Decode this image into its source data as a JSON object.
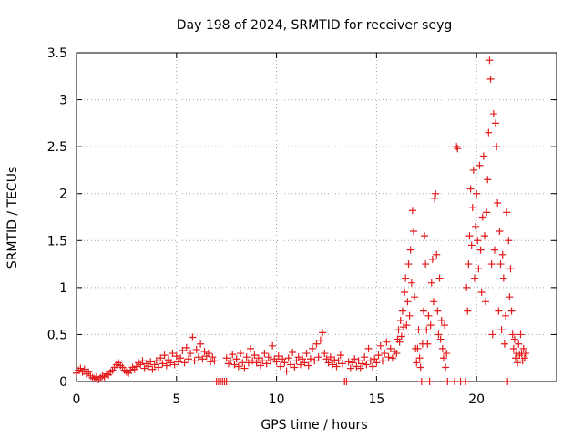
{
  "chart_data": {
    "type": "scatter",
    "title": "Day 198 of 2024, SRMTID for receiver seyg",
    "xlabel": "GPS time / hours",
    "ylabel": "SRMTID / TECUs",
    "xlim": [
      0,
      24
    ],
    "ylim": [
      0,
      3.5
    ],
    "x_ticks": [
      0,
      5,
      10,
      15,
      20
    ],
    "x_tick_labels": [
      "0",
      "5",
      "10",
      "15",
      "20"
    ],
    "y_ticks": [
      0,
      0.5,
      1,
      1.5,
      2,
      2.5,
      3,
      3.5
    ],
    "y_tick_labels": [
      "0",
      "0.5",
      "1",
      "1.5",
      "2",
      "2.5",
      "3",
      "3.5"
    ],
    "grid": true,
    "marker": "+",
    "series": [
      {
        "name": "SRMTID",
        "color": "#e41a1c",
        "points": [
          [
            0.0,
            0.09
          ],
          [
            0.1,
            0.12
          ],
          [
            0.2,
            0.14
          ],
          [
            0.3,
            0.1
          ],
          [
            0.4,
            0.13
          ],
          [
            0.5,
            0.08
          ],
          [
            0.6,
            0.1
          ],
          [
            0.7,
            0.06
          ],
          [
            0.8,
            0.04
          ],
          [
            0.9,
            0.03
          ],
          [
            1.0,
            0.05
          ],
          [
            1.1,
            0.02
          ],
          [
            1.2,
            0.04
          ],
          [
            1.3,
            0.06
          ],
          [
            1.4,
            0.05
          ],
          [
            1.5,
            0.08
          ],
          [
            1.6,
            0.07
          ],
          [
            1.7,
            0.1
          ],
          [
            1.8,
            0.12
          ],
          [
            1.9,
            0.15
          ],
          [
            2.0,
            0.18
          ],
          [
            2.1,
            0.2
          ],
          [
            2.2,
            0.17
          ],
          [
            2.3,
            0.15
          ],
          [
            2.4,
            0.12
          ],
          [
            2.5,
            0.1
          ],
          [
            2.6,
            0.09
          ],
          [
            2.7,
            0.12
          ],
          [
            2.8,
            0.15
          ],
          [
            2.9,
            0.13
          ],
          [
            3.0,
            0.16
          ],
          [
            3.1,
            0.2
          ],
          [
            3.2,
            0.18
          ],
          [
            3.3,
            0.22
          ],
          [
            3.4,
            0.14
          ],
          [
            3.5,
            0.19
          ],
          [
            3.6,
            0.16
          ],
          [
            3.7,
            0.21
          ],
          [
            3.8,
            0.13
          ],
          [
            3.9,
            0.18
          ],
          [
            4.0,
            0.22
          ],
          [
            4.1,
            0.15
          ],
          [
            4.2,
            0.25
          ],
          [
            4.3,
            0.19
          ],
          [
            4.4,
            0.28
          ],
          [
            4.5,
            0.17
          ],
          [
            4.6,
            0.23
          ],
          [
            4.7,
            0.2
          ],
          [
            4.8,
            0.3
          ],
          [
            4.9,
            0.18
          ],
          [
            5.0,
            0.27
          ],
          [
            5.1,
            0.21
          ],
          [
            5.2,
            0.25
          ],
          [
            5.3,
            0.33
          ],
          [
            5.4,
            0.2
          ],
          [
            5.5,
            0.36
          ],
          [
            5.6,
            0.24
          ],
          [
            5.7,
            0.3
          ],
          [
            5.8,
            0.47
          ],
          [
            5.9,
            0.22
          ],
          [
            6.0,
            0.34
          ],
          [
            6.1,
            0.26
          ],
          [
            6.2,
            0.4
          ],
          [
            6.3,
            0.24
          ],
          [
            6.4,
            0.32
          ],
          [
            6.5,
            0.27
          ],
          [
            6.6,
            0.3
          ],
          [
            6.7,
            0.21
          ],
          [
            6.8,
            0.26
          ],
          [
            6.9,
            0.22
          ],
          [
            7.0,
            0.0
          ],
          [
            7.1,
            0.0
          ],
          [
            7.2,
            0.0
          ],
          [
            7.3,
            0.0
          ],
          [
            7.4,
            0.0
          ],
          [
            7.5,
            0.0
          ],
          [
            7.5,
            0.25
          ],
          [
            7.6,
            0.19
          ],
          [
            7.7,
            0.22
          ],
          [
            7.8,
            0.29
          ],
          [
            7.9,
            0.18
          ],
          [
            8.0,
            0.24
          ],
          [
            8.1,
            0.16
          ],
          [
            8.2,
            0.3
          ],
          [
            8.3,
            0.2
          ],
          [
            8.4,
            0.14
          ],
          [
            8.5,
            0.26
          ],
          [
            8.6,
            0.2
          ],
          [
            8.7,
            0.35
          ],
          [
            8.8,
            0.22
          ],
          [
            8.9,
            0.28
          ],
          [
            9.0,
            0.2
          ],
          [
            9.1,
            0.25
          ],
          [
            9.2,
            0.17
          ],
          [
            9.3,
            0.22
          ],
          [
            9.4,
            0.3
          ],
          [
            9.5,
            0.19
          ],
          [
            9.6,
            0.26
          ],
          [
            9.7,
            0.22
          ],
          [
            9.8,
            0.38
          ],
          [
            9.9,
            0.24
          ],
          [
            10.0,
            0.21
          ],
          [
            10.1,
            0.27
          ],
          [
            10.2,
            0.16
          ],
          [
            10.3,
            0.24
          ],
          [
            10.4,
            0.2
          ],
          [
            10.5,
            0.11
          ],
          [
            10.6,
            0.25
          ],
          [
            10.7,
            0.18
          ],
          [
            10.8,
            0.31
          ],
          [
            10.9,
            0.15
          ],
          [
            11.0,
            0.22
          ],
          [
            11.1,
            0.26
          ],
          [
            11.2,
            0.18
          ],
          [
            11.3,
            0.24
          ],
          [
            11.4,
            0.2
          ],
          [
            11.5,
            0.3
          ],
          [
            11.6,
            0.17
          ],
          [
            11.7,
            0.24
          ],
          [
            11.8,
            0.35
          ],
          [
            11.9,
            0.22
          ],
          [
            12.0,
            0.4
          ],
          [
            12.1,
            0.26
          ],
          [
            12.2,
            0.44
          ],
          [
            12.3,
            0.52
          ],
          [
            12.4,
            0.3
          ],
          [
            12.5,
            0.24
          ],
          [
            12.6,
            0.2
          ],
          [
            12.7,
            0.26
          ],
          [
            12.8,
            0.18
          ],
          [
            12.9,
            0.23
          ],
          [
            13.0,
            0.16
          ],
          [
            13.1,
            0.22
          ],
          [
            13.2,
            0.28
          ],
          [
            13.3,
            0.19
          ],
          [
            13.4,
            0.0
          ],
          [
            13.5,
            0.0
          ],
          [
            13.6,
            0.21
          ],
          [
            13.7,
            0.14
          ],
          [
            13.8,
            0.2
          ],
          [
            13.9,
            0.24
          ],
          [
            14.0,
            0.16
          ],
          [
            14.1,
            0.22
          ],
          [
            14.2,
            0.14
          ],
          [
            14.3,
            0.19
          ],
          [
            14.4,
            0.26
          ],
          [
            14.5,
            0.18
          ],
          [
            14.6,
            0.35
          ],
          [
            14.7,
            0.22
          ],
          [
            14.8,
            0.16
          ],
          [
            14.9,
            0.24
          ],
          [
            15.0,
            0.2
          ],
          [
            15.1,
            0.28
          ],
          [
            15.2,
            0.38
          ],
          [
            15.3,
            0.22
          ],
          [
            15.4,
            0.3
          ],
          [
            15.5,
            0.42
          ],
          [
            15.6,
            0.26
          ],
          [
            15.7,
            0.35
          ],
          [
            15.8,
            0.25
          ],
          [
            15.9,
            0.32
          ],
          [
            16.0,
            0.3
          ],
          [
            16.05,
            0.45
          ],
          [
            16.1,
            0.55
          ],
          [
            16.15,
            0.42
          ],
          [
            16.2,
            0.65
          ],
          [
            16.25,
            0.48
          ],
          [
            16.3,
            0.75
          ],
          [
            16.35,
            0.58
          ],
          [
            16.4,
            0.95
          ],
          [
            16.45,
            1.1
          ],
          [
            16.5,
            0.6
          ],
          [
            16.55,
            0.85
          ],
          [
            16.6,
            1.25
          ],
          [
            16.65,
            0.7
          ],
          [
            16.7,
            1.4
          ],
          [
            16.75,
            1.05
          ],
          [
            16.8,
            1.82
          ],
          [
            16.85,
            1.6
          ],
          [
            16.9,
            0.9
          ],
          [
            16.95,
            0.35
          ],
          [
            17.0,
            0.2
          ],
          [
            17.05,
            0.35
          ],
          [
            17.1,
            0.55
          ],
          [
            17.15,
            0.25
          ],
          [
            17.2,
            0.15
          ],
          [
            17.25,
            0.0
          ],
          [
            17.3,
            0.4
          ],
          [
            17.35,
            0.75
          ],
          [
            17.4,
            1.55
          ],
          [
            17.45,
            1.25
          ],
          [
            17.5,
            0.55
          ],
          [
            17.55,
            0.4
          ],
          [
            17.6,
            0.7
          ],
          [
            17.65,
            0.0
          ],
          [
            17.7,
            0.6
          ],
          [
            17.75,
            1.05
          ],
          [
            17.8,
            1.3
          ],
          [
            17.85,
            0.85
          ],
          [
            17.9,
            1.95
          ],
          [
            17.95,
            2.0
          ],
          [
            18.0,
            1.35
          ],
          [
            18.05,
            0.75
          ],
          [
            18.1,
            0.5
          ],
          [
            18.15,
            1.1
          ],
          [
            18.2,
            0.45
          ],
          [
            18.25,
            0.65
          ],
          [
            18.3,
            0.35
          ],
          [
            18.35,
            0.25
          ],
          [
            18.4,
            0.6
          ],
          [
            18.45,
            0.15
          ],
          [
            18.5,
            0.3
          ],
          [
            18.55,
            0.0
          ],
          [
            18.9,
            0.0
          ],
          [
            19.0,
            2.5
          ],
          [
            19.05,
            2.48
          ],
          [
            19.2,
            0.0
          ],
          [
            19.45,
            0.0
          ],
          [
            19.5,
            1.0
          ],
          [
            19.55,
            0.75
          ],
          [
            19.6,
            1.25
          ],
          [
            19.65,
            1.55
          ],
          [
            19.7,
            2.05
          ],
          [
            19.75,
            1.45
          ],
          [
            19.8,
            1.85
          ],
          [
            19.85,
            2.25
          ],
          [
            19.9,
            1.1
          ],
          [
            19.95,
            1.65
          ],
          [
            20.0,
            2.0
          ],
          [
            20.05,
            1.5
          ],
          [
            20.1,
            1.2
          ],
          [
            20.15,
            2.3
          ],
          [
            20.2,
            1.4
          ],
          [
            20.25,
            0.95
          ],
          [
            20.3,
            1.75
          ],
          [
            20.35,
            2.4
          ],
          [
            20.4,
            1.55
          ],
          [
            20.45,
            0.85
          ],
          [
            20.5,
            1.8
          ],
          [
            20.55,
            2.15
          ],
          [
            20.6,
            2.65
          ],
          [
            20.65,
            3.42
          ],
          [
            20.7,
            3.22
          ],
          [
            20.75,
            1.25
          ],
          [
            20.8,
            0.5
          ],
          [
            20.85,
            2.85
          ],
          [
            20.9,
            1.4
          ],
          [
            20.95,
            2.75
          ],
          [
            21.0,
            2.5
          ],
          [
            21.05,
            1.9
          ],
          [
            21.1,
            0.75
          ],
          [
            21.15,
            1.6
          ],
          [
            21.2,
            1.25
          ],
          [
            21.25,
            0.55
          ],
          [
            21.3,
            1.35
          ],
          [
            21.35,
            1.1
          ],
          [
            21.4,
            0.4
          ],
          [
            21.45,
            0.7
          ],
          [
            21.5,
            1.8
          ],
          [
            21.55,
            0.0
          ],
          [
            21.6,
            1.5
          ],
          [
            21.65,
            0.9
          ],
          [
            21.7,
            1.2
          ],
          [
            21.75,
            0.75
          ],
          [
            21.8,
            0.5
          ],
          [
            21.85,
            0.35
          ],
          [
            21.9,
            0.45
          ],
          [
            21.95,
            0.25
          ],
          [
            22.0,
            0.3
          ],
          [
            22.05,
            0.2
          ],
          [
            22.1,
            0.4
          ],
          [
            22.15,
            0.28
          ],
          [
            22.2,
            0.5
          ],
          [
            22.25,
            0.3
          ],
          [
            22.3,
            0.22
          ],
          [
            22.35,
            0.35
          ],
          [
            22.4,
            0.25
          ],
          [
            22.45,
            0.3
          ]
        ]
      }
    ]
  }
}
